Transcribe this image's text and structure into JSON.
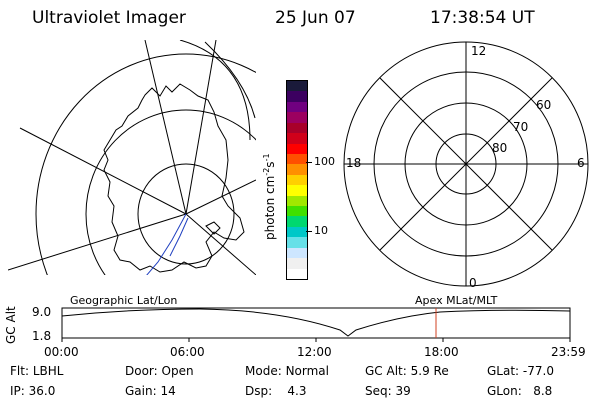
{
  "header": {
    "title": "Ultraviolet Imager",
    "date": "25 Jun 07",
    "time": "17:38:54 UT"
  },
  "colorbar": {
    "label": "photon cm",
    "label_sup1": "-2",
    "label_mid": "s",
    "label_sup2": "-1",
    "ticks": [
      {
        "label": "100",
        "frac": 0.585
      },
      {
        "label": "10",
        "frac": 0.235
      }
    ],
    "colors": [
      "#ffffff",
      "#f0f0f0",
      "#cde6ff",
      "#66e0e8",
      "#00c8c8",
      "#00d870",
      "#40e000",
      "#a0e800",
      "#ffff00",
      "#ffd000",
      "#ff9000",
      "#ff5000",
      "#ff0000",
      "#d0001a",
      "#a8002a",
      "#9c0060",
      "#700080",
      "#3c0060",
      "#1a1a3a"
    ]
  },
  "left_map": {
    "label": "Geographic Lat/Lon"
  },
  "right_polar": {
    "label": "Apex MLat/MLT",
    "hour_labels": [
      "12",
      "18",
      "6",
      "0"
    ],
    "lat_labels": [
      "60",
      "70",
      "80"
    ]
  },
  "alt_plot": {
    "ylabel": "GC Alt",
    "yticks": [
      "9.0",
      "1.8"
    ],
    "xticks": [
      "00:00",
      "06:00",
      "12:00",
      "18:00",
      "23:59"
    ],
    "marker_color": "#d04020"
  },
  "status": {
    "row1": [
      {
        "key": "Flt:",
        "val": "LBHL"
      },
      {
        "key": "Door:",
        "val": "Open"
      },
      {
        "key": "Mode:",
        "val": "Normal"
      },
      {
        "key": "GC Alt:",
        "val": "5.9 Re"
      },
      {
        "key": "GLat:",
        "val": "-77.0"
      }
    ],
    "row2": [
      {
        "key": "IP:",
        "val": "36.0"
      },
      {
        "key": "Gain:",
        "val": "14"
      },
      {
        "key": "Dsp:",
        "val": "4.3"
      },
      {
        "key": "Seq:",
        "val": "39"
      },
      {
        "key": "GLon:",
        "val": "8.8"
      }
    ]
  }
}
